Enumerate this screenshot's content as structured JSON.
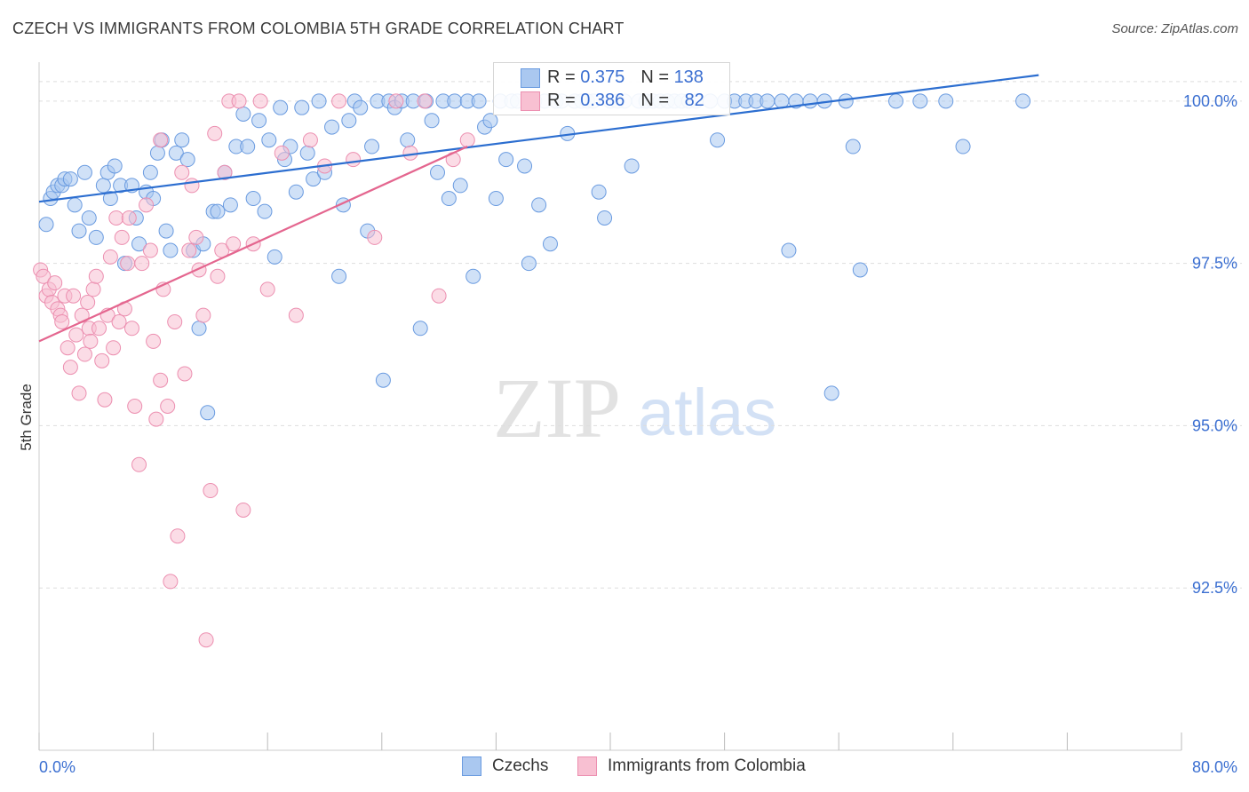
{
  "title": "CZECH VS IMMIGRANTS FROM COLOMBIA 5TH GRADE CORRELATION CHART",
  "source": "Source: ZipAtlas.com",
  "watermark": {
    "zip": "ZIP",
    "atlas": "atlas"
  },
  "colors": {
    "czech_fill": "#aac8f0",
    "czech_stroke": "#6a9be0",
    "czech_line": "#2c6ed0",
    "colombia_fill": "#f8c0d2",
    "colombia_stroke": "#ec8fb0",
    "colombia_line": "#e4668f",
    "axis_text": "#3b6fd1",
    "grid": "#dddddd"
  },
  "legend": {
    "czech": {
      "r_label": "R = ",
      "r_value": "0.375",
      "n_label": "N = ",
      "n_value": "138"
    },
    "colombia": {
      "r_label": "R = ",
      "r_value": "0.386",
      "n_label": "N = ",
      "n_value": "82"
    }
  },
  "chart_data": {
    "type": "scatter",
    "title": "CZECH VS IMMIGRANTS FROM COLOMBIA 5TH GRADE CORRELATION CHART",
    "xlabel": "",
    "ylabel": "5th Grade",
    "xlim": [
      0,
      80
    ],
    "ylim": [
      90.0,
      100.6
    ],
    "x_tick_labels": [
      "0.0%",
      "80.0%"
    ],
    "y_ticks": [
      92.5,
      95.0,
      97.5,
      100.0
    ],
    "y_tick_labels": [
      "92.5%",
      "95.0%",
      "97.5%",
      "100.0%"
    ],
    "grid": true,
    "legend_position": "bottom",
    "series": [
      {
        "name": "Czechs",
        "trendline": {
          "x": [
            0,
            70
          ],
          "y": [
            98.45,
            100.4
          ]
        },
        "points": [
          [
            0.5,
            98.1
          ],
          [
            0.8,
            98.5
          ],
          [
            1.0,
            98.6
          ],
          [
            1.3,
            98.7
          ],
          [
            1.6,
            98.7
          ],
          [
            1.8,
            98.8
          ],
          [
            2.2,
            98.8
          ],
          [
            2.5,
            98.4
          ],
          [
            2.8,
            98.0
          ],
          [
            3.2,
            98.9
          ],
          [
            3.5,
            98.2
          ],
          [
            4.0,
            97.9
          ],
          [
            4.5,
            98.7
          ],
          [
            4.8,
            98.9
          ],
          [
            5.0,
            98.5
          ],
          [
            5.3,
            99.0
          ],
          [
            5.7,
            98.7
          ],
          [
            6.0,
            97.5
          ],
          [
            6.5,
            98.7
          ],
          [
            6.8,
            98.2
          ],
          [
            7.0,
            97.8
          ],
          [
            7.5,
            98.6
          ],
          [
            7.8,
            98.9
          ],
          [
            8.0,
            98.5
          ],
          [
            8.3,
            99.2
          ],
          [
            8.6,
            99.4
          ],
          [
            8.9,
            98.0
          ],
          [
            9.2,
            97.7
          ],
          [
            9.6,
            99.2
          ],
          [
            10.0,
            99.4
          ],
          [
            10.4,
            99.1
          ],
          [
            10.8,
            97.7
          ],
          [
            11.2,
            96.5
          ],
          [
            11.5,
            97.8
          ],
          [
            11.8,
            95.2
          ],
          [
            12.2,
            98.3
          ],
          [
            12.5,
            98.3
          ],
          [
            13.0,
            98.9
          ],
          [
            13.4,
            98.4
          ],
          [
            13.8,
            99.3
          ],
          [
            14.3,
            99.8
          ],
          [
            14.6,
            99.3
          ],
          [
            15.0,
            98.5
          ],
          [
            15.4,
            99.7
          ],
          [
            15.8,
            98.3
          ],
          [
            16.1,
            99.4
          ],
          [
            16.5,
            97.6
          ],
          [
            16.9,
            99.9
          ],
          [
            17.2,
            99.1
          ],
          [
            17.6,
            99.3
          ],
          [
            18.0,
            98.6
          ],
          [
            18.4,
            99.9
          ],
          [
            18.8,
            99.2
          ],
          [
            19.2,
            98.8
          ],
          [
            19.6,
            100.0
          ],
          [
            20.0,
            98.9
          ],
          [
            20.5,
            99.6
          ],
          [
            21.0,
            97.3
          ],
          [
            21.3,
            98.4
          ],
          [
            21.7,
            99.7
          ],
          [
            22.1,
            100.0
          ],
          [
            22.5,
            99.9
          ],
          [
            23.0,
            98.0
          ],
          [
            23.3,
            99.3
          ],
          [
            23.7,
            100.0
          ],
          [
            24.1,
            95.7
          ],
          [
            24.5,
            100.0
          ],
          [
            24.9,
            99.9
          ],
          [
            25.4,
            100.0
          ],
          [
            25.8,
            99.4
          ],
          [
            26.2,
            100.0
          ],
          [
            26.7,
            96.5
          ],
          [
            27.1,
            100.0
          ],
          [
            27.5,
            99.7
          ],
          [
            27.9,
            98.9
          ],
          [
            28.3,
            100.0
          ],
          [
            28.7,
            98.5
          ],
          [
            29.1,
            100.0
          ],
          [
            29.5,
            98.7
          ],
          [
            30.0,
            100.0
          ],
          [
            30.4,
            97.3
          ],
          [
            30.8,
            100.0
          ],
          [
            31.2,
            99.6
          ],
          [
            31.6,
            99.7
          ],
          [
            32.0,
            98.5
          ],
          [
            32.3,
            100.0
          ],
          [
            32.7,
            99.1
          ],
          [
            33.1,
            100.0
          ],
          [
            33.5,
            100.0
          ],
          [
            34.0,
            99.0
          ],
          [
            34.3,
            97.5
          ],
          [
            34.7,
            100.0
          ],
          [
            35.0,
            98.4
          ],
          [
            35.4,
            100.0
          ],
          [
            35.8,
            97.8
          ],
          [
            36.2,
            100.0
          ],
          [
            36.6,
            100.0
          ],
          [
            37.0,
            99.5
          ],
          [
            37.5,
            100.0
          ],
          [
            38.0,
            100.0
          ],
          [
            38.4,
            100.0
          ],
          [
            38.8,
            100.0
          ],
          [
            39.2,
            98.6
          ],
          [
            39.6,
            98.2
          ],
          [
            40.0,
            100.0
          ],
          [
            40.5,
            100.0
          ],
          [
            41.0,
            100.0
          ],
          [
            41.5,
            99.0
          ],
          [
            42.0,
            100.0
          ],
          [
            42.5,
            100.0
          ],
          [
            43.0,
            100.0
          ],
          [
            43.5,
            100.0
          ],
          [
            44.0,
            100.0
          ],
          [
            44.5,
            100.0
          ],
          [
            45.0,
            100.0
          ],
          [
            45.5,
            100.0
          ],
          [
            46.0,
            100.0
          ],
          [
            47.0,
            100.0
          ],
          [
            47.5,
            99.4
          ],
          [
            48.0,
            100.0
          ],
          [
            48.7,
            100.0
          ],
          [
            49.5,
            100.0
          ],
          [
            50.2,
            100.0
          ],
          [
            51.0,
            100.0
          ],
          [
            52.0,
            100.0
          ],
          [
            52.5,
            97.7
          ],
          [
            53.0,
            100.0
          ],
          [
            54.0,
            100.0
          ],
          [
            55.0,
            100.0
          ],
          [
            55.5,
            95.5
          ],
          [
            56.5,
            100.0
          ],
          [
            57.0,
            99.3
          ],
          [
            57.5,
            97.4
          ],
          [
            60.0,
            100.0
          ],
          [
            61.7,
            100.0
          ],
          [
            63.5,
            100.0
          ],
          [
            64.7,
            99.3
          ],
          [
            68.9,
            100.0
          ]
        ]
      },
      {
        "name": "Immigrants from Colombia",
        "trendline": {
          "x": [
            0,
            30
          ],
          "y": [
            96.3,
            99.3
          ]
        },
        "points": [
          [
            0.1,
            97.4
          ],
          [
            0.3,
            97.3
          ],
          [
            0.5,
            97.0
          ],
          [
            0.7,
            97.1
          ],
          [
            0.9,
            96.9
          ],
          [
            1.1,
            97.2
          ],
          [
            1.3,
            96.8
          ],
          [
            1.5,
            96.7
          ],
          [
            1.6,
            96.6
          ],
          [
            1.8,
            97.0
          ],
          [
            2.0,
            96.2
          ],
          [
            2.2,
            95.9
          ],
          [
            2.4,
            97.0
          ],
          [
            2.6,
            96.4
          ],
          [
            2.8,
            95.5
          ],
          [
            3.0,
            96.7
          ],
          [
            3.2,
            96.1
          ],
          [
            3.4,
            96.9
          ],
          [
            3.5,
            96.5
          ],
          [
            3.6,
            96.3
          ],
          [
            3.8,
            97.1
          ],
          [
            4.0,
            97.3
          ],
          [
            4.2,
            96.5
          ],
          [
            4.4,
            96.0
          ],
          [
            4.6,
            95.4
          ],
          [
            4.8,
            96.7
          ],
          [
            5.0,
            97.6
          ],
          [
            5.2,
            96.2
          ],
          [
            5.4,
            98.2
          ],
          [
            5.6,
            96.6
          ],
          [
            5.8,
            97.9
          ],
          [
            6.0,
            96.8
          ],
          [
            6.2,
            97.5
          ],
          [
            6.5,
            96.5
          ],
          [
            6.7,
            95.3
          ],
          [
            7.0,
            94.4
          ],
          [
            7.2,
            97.5
          ],
          [
            7.5,
            98.4
          ],
          [
            7.8,
            97.7
          ],
          [
            8.0,
            96.3
          ],
          [
            8.2,
            95.1
          ],
          [
            8.5,
            95.7
          ],
          [
            8.7,
            97.1
          ],
          [
            9.0,
            95.3
          ],
          [
            9.2,
            92.6
          ],
          [
            9.5,
            96.6
          ],
          [
            9.7,
            93.3
          ],
          [
            10.0,
            98.9
          ],
          [
            10.2,
            95.8
          ],
          [
            10.5,
            97.7
          ],
          [
            10.7,
            98.7
          ],
          [
            11.0,
            97.9
          ],
          [
            11.2,
            97.4
          ],
          [
            11.5,
            96.7
          ],
          [
            11.7,
            91.7
          ],
          [
            12.0,
            94.0
          ],
          [
            12.3,
            99.5
          ],
          [
            12.5,
            97.3
          ],
          [
            12.8,
            97.7
          ],
          [
            13.0,
            98.9
          ],
          [
            13.3,
            100.0
          ],
          [
            13.6,
            97.8
          ],
          [
            14.0,
            100.0
          ],
          [
            14.3,
            93.7
          ],
          [
            15.0,
            97.8
          ],
          [
            15.5,
            100.0
          ],
          [
            16.0,
            97.1
          ],
          [
            17.0,
            99.2
          ],
          [
            18.0,
            96.7
          ],
          [
            19.0,
            99.4
          ],
          [
            20.0,
            99.0
          ],
          [
            21.0,
            100.0
          ],
          [
            22.0,
            99.1
          ],
          [
            23.5,
            97.9
          ],
          [
            25.0,
            100.0
          ],
          [
            26.0,
            99.2
          ],
          [
            27.0,
            100.0
          ],
          [
            28.0,
            97.0
          ],
          [
            29.0,
            99.1
          ],
          [
            30.0,
            99.4
          ],
          [
            8.5,
            99.4
          ],
          [
            6.3,
            98.2
          ]
        ]
      }
    ]
  }
}
